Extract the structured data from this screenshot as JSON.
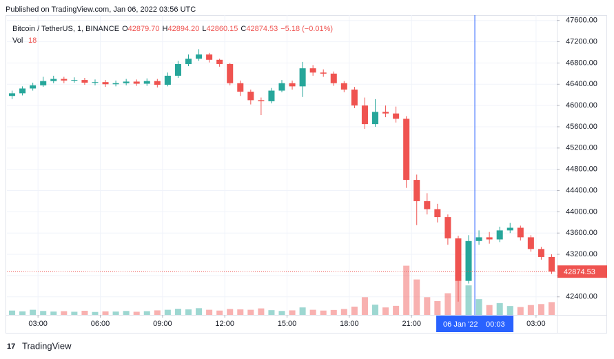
{
  "published": "Published on TradingView.com, Jan 06, 2022 03:56 UTC",
  "chart_data": {
    "type": "candlestick",
    "title": "Bitcoin / TetherUS, 1, BINANCE",
    "ohlc_legend": [
      {
        "label": "O",
        "value": "42879.70"
      },
      {
        "label": "H",
        "value": "42894.20"
      },
      {
        "label": "L",
        "value": "42860.15"
      },
      {
        "label": "C",
        "value": "42874.53"
      }
    ],
    "change": "−5.18 (−0.01%)",
    "volume_label": "Vol",
    "volume_value": "18",
    "up_color": "#26a69a",
    "down_color": "#ef5350",
    "x": [
      1.75,
      2.25,
      2.75,
      3.25,
      3.75,
      4.25,
      4.75,
      5.25,
      5.75,
      6.25,
      6.75,
      7.25,
      7.75,
      8.25,
      8.75,
      9.25,
      9.75,
      10.25,
      10.75,
      11.25,
      11.75,
      12.25,
      12.75,
      13.25,
      13.75,
      14.25,
      14.75,
      15.25,
      15.75,
      16.25,
      16.75,
      17.25,
      17.75,
      18.25,
      18.75,
      19.25,
      19.75,
      20.25,
      20.75,
      21.25,
      21.75,
      22.25,
      22.75,
      23.25,
      23.75,
      24.25,
      24.75,
      25.25,
      25.75,
      26.25,
      26.75,
      27.25,
      27.75
    ],
    "open": [
      46180,
      46230,
      46320,
      46380,
      46460,
      46500,
      46470,
      46480,
      46430,
      46440,
      46400,
      46420,
      46450,
      46410,
      46460,
      46390,
      46560,
      46780,
      46880,
      46960,
      46860,
      46780,
      46420,
      46260,
      46100,
      46080,
      46280,
      46420,
      46360,
      46700,
      46620,
      46600,
      46420,
      46300,
      46000,
      45650,
      45880,
      45850,
      45750,
      44600,
      44200,
      44050,
      43900,
      43500,
      42700,
      43450,
      43520,
      43480,
      43650,
      43700,
      43520,
      43300,
      43150
    ],
    "high": [
      46280,
      46360,
      46430,
      46540,
      46560,
      46540,
      46530,
      46520,
      46490,
      46480,
      46470,
      46500,
      46490,
      46510,
      46500,
      46620,
      46840,
      46960,
      47060,
      46990,
      46880,
      46800,
      46470,
      46300,
      46150,
      46330,
      46480,
      46470,
      46820,
      46760,
      46680,
      46640,
      46460,
      46350,
      46150,
      46120,
      46000,
      45980,
      45800,
      44700,
      44350,
      44150,
      43950,
      43550,
      43560,
      43650,
      43620,
      43720,
      43790,
      43740,
      43560,
      43340,
      43200
    ],
    "low": [
      46120,
      46190,
      46280,
      46350,
      46420,
      46420,
      46430,
      46390,
      46380,
      46350,
      46360,
      46380,
      46370,
      46370,
      46340,
      46360,
      46520,
      46740,
      46840,
      46810,
      46730,
      46380,
      46180,
      46020,
      45820,
      46040,
      46250,
      46300,
      46160,
      46560,
      46540,
      46370,
      46250,
      45950,
      45560,
      45600,
      45780,
      45680,
      44450,
      43750,
      43950,
      43800,
      43380,
      42310,
      42650,
      43380,
      43400,
      43430,
      43600,
      43460,
      43250,
      43100,
      42830
    ],
    "close": [
      46230,
      46320,
      46380,
      46460,
      46500,
      46470,
      46480,
      46430,
      46440,
      46400,
      46420,
      46450,
      46410,
      46460,
      46390,
      46560,
      46780,
      46880,
      46960,
      46860,
      46780,
      46420,
      46260,
      46100,
      46080,
      46280,
      46420,
      46360,
      46700,
      46620,
      46600,
      46420,
      46300,
      46000,
      45650,
      45880,
      45850,
      45750,
      44600,
      44200,
      44050,
      43900,
      43500,
      42700,
      43450,
      43520,
      43480,
      43650,
      43700,
      43520,
      43300,
      43150,
      42874.53
    ],
    "volume": [
      220,
      180,
      260,
      200,
      170,
      190,
      160,
      210,
      150,
      180,
      170,
      200,
      160,
      190,
      230,
      260,
      310,
      280,
      340,
      260,
      220,
      300,
      280,
      260,
      330,
      240,
      200,
      230,
      380,
      260,
      220,
      250,
      300,
      420,
      900,
      520,
      380,
      460,
      2500,
      1800,
      900,
      700,
      1100,
      3000,
      1500,
      800,
      500,
      600,
      450,
      400,
      500,
      550,
      650
    ],
    "vol_lim": [
      0,
      3500
    ],
    "xlim": [
      1.5,
      28
    ],
    "xticks": [
      {
        "value": 3,
        "label": "03:00"
      },
      {
        "value": 6,
        "label": "06:00"
      },
      {
        "value": 9,
        "label": "09:00"
      },
      {
        "value": 12,
        "label": "12:00"
      },
      {
        "value": 15,
        "label": "15:00"
      },
      {
        "value": 18,
        "label": "18:00"
      },
      {
        "value": 21,
        "label": "21:00"
      },
      {
        "value": 27,
        "label": "03:00"
      }
    ],
    "ylim": [
      42060,
      47700
    ],
    "yticks": [
      {
        "value": 47600,
        "label": "47600.00"
      },
      {
        "value": 47200,
        "label": "47200.00"
      },
      {
        "value": 46800,
        "label": "46800.00"
      },
      {
        "value": 46400,
        "label": "46400.00"
      },
      {
        "value": 46000,
        "label": "46000.00"
      },
      {
        "value": 45600,
        "label": "45600.00"
      },
      {
        "value": 45200,
        "label": "45200.00"
      },
      {
        "value": 44800,
        "label": "44800.00"
      },
      {
        "value": 44400,
        "label": "44400.00"
      },
      {
        "value": 44000,
        "label": "44000.00"
      },
      {
        "value": 43600,
        "label": "43600.00"
      },
      {
        "value": 43200,
        "label": "43200.00"
      },
      {
        "value": 42800,
        "label": "42800.00"
      },
      {
        "value": 42400,
        "label": "42400.00"
      }
    ],
    "grid": true,
    "crosshair": {
      "x": 24.05,
      "date": "06 Jan '22",
      "time": "00:03",
      "color": "#2962ff"
    }
  },
  "footer": {
    "brand": "TradingView"
  }
}
